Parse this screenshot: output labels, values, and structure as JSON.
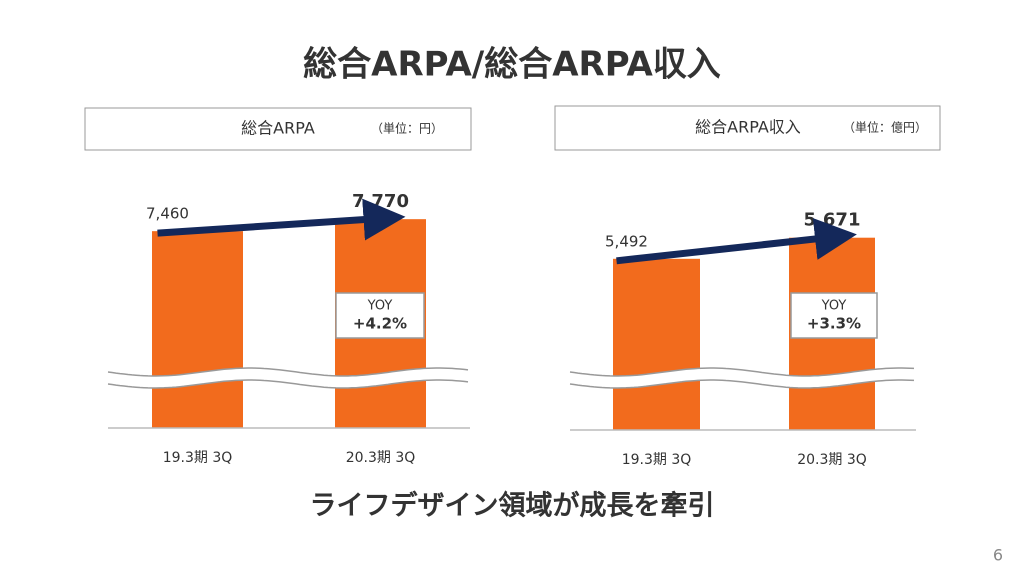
{
  "title": "総合ARPA/総合ARPA収入",
  "footer": "ライフデザイン領域が成長を牽引",
  "page_number": "6",
  "chart_data": [
    {
      "type": "bar",
      "title": "総合ARPA",
      "unit": "（単位：円）",
      "categories": [
        "19.3期 3Q",
        "20.3期 3Q"
      ],
      "values": [
        7460,
        7770
      ],
      "value_labels": [
        "7,460",
        "7,770"
      ],
      "color": "#f26b1d",
      "ylim": [
        2370,
        9300
      ],
      "axis_break": true,
      "annotation": {
        "label": "YOY",
        "text": "+4.2%"
      }
    },
    {
      "type": "bar",
      "title": "総合ARPA収入",
      "unit": "（単位：億円）",
      "categories": [
        "19.3期 3Q",
        "20.3期 3Q"
      ],
      "values": [
        5492,
        5671
      ],
      "value_labels": [
        "5,492",
        "5,671"
      ],
      "color": "#f26b1d",
      "ylim": [
        4040,
        6330
      ],
      "axis_break": true,
      "annotation": {
        "label": "YOY",
        "text": "+3.3%"
      }
    }
  ]
}
